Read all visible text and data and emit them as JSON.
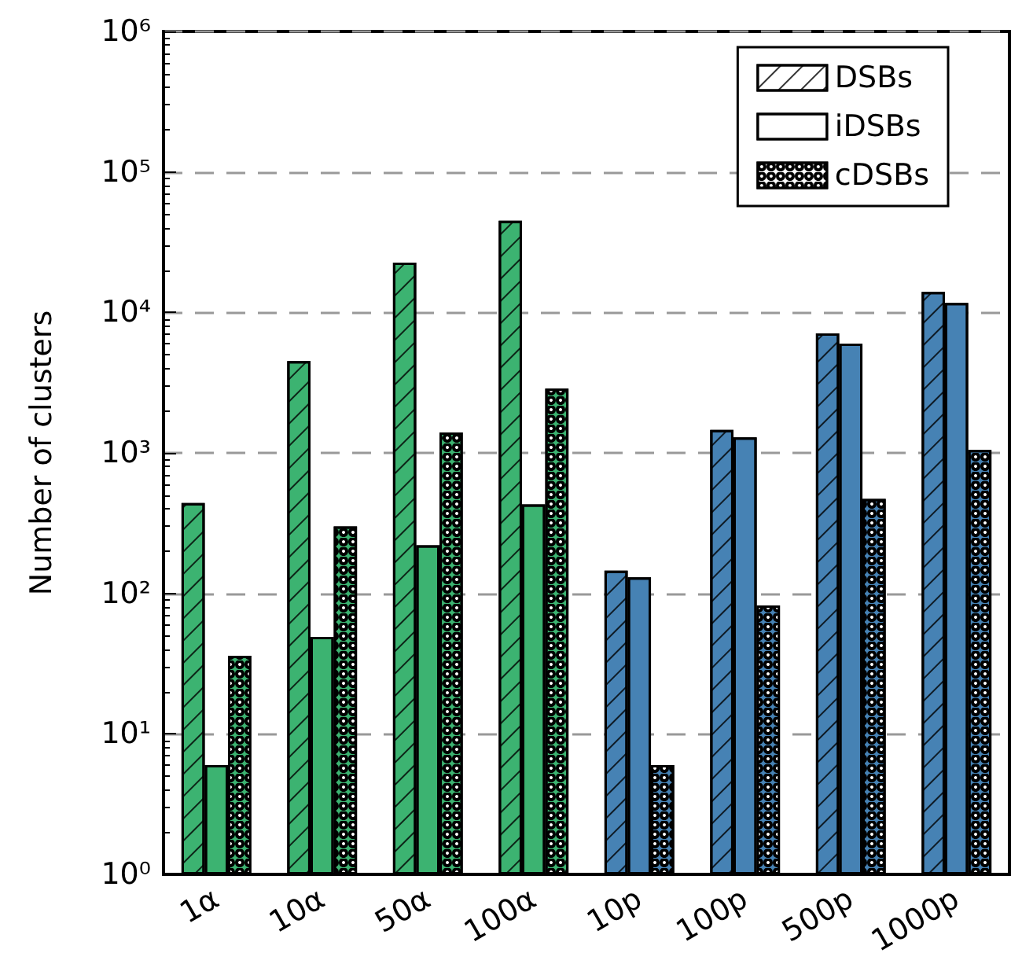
{
  "chart_data": {
    "type": "bar",
    "ylabel": "Number of clusters",
    "categories": [
      "1α",
      "10α",
      "50α",
      "100α",
      "10p",
      "100p",
      "500p",
      "1000p"
    ],
    "series": [
      {
        "name": "DSBs",
        "colors": [
          "#3cb371",
          "#3cb371",
          "#3cb371",
          "#3cb371",
          "#4682b4",
          "#4682b4",
          "#4682b4",
          "#4682b4"
        ],
        "values": [
          440,
          4500,
          22600,
          45000,
          145,
          1460,
          7100,
          14000
        ]
      },
      {
        "name": "iDSBs",
        "colors": [
          "#3cb371",
          "#3cb371",
          "#3cb371",
          "#3cb371",
          "#4682b4",
          "#4682b4",
          "#4682b4",
          "#4682b4"
        ],
        "values": [
          6,
          49,
          220,
          430,
          130,
          1290,
          6000,
          11700
        ]
      },
      {
        "name": "cDSBs",
        "colors": [
          "#3cb371",
          "#3cb371",
          "#3cb371",
          "#3cb371",
          "#4682b4",
          "#4682b4",
          "#4682b4",
          "#4682b4"
        ],
        "values": [
          36,
          300,
          1400,
          2870,
          6,
          82,
          470,
          1050
        ]
      }
    ],
    "log": true,
    "ylim": [
      1,
      1000000
    ],
    "yticks": [
      {
        "value": 1,
        "label": "10⁰"
      },
      {
        "value": 10,
        "label": "10¹"
      },
      {
        "value": 100,
        "label": "10²"
      },
      {
        "value": 1000,
        "label": "10³"
      },
      {
        "value": 10000,
        "label": "10⁴"
      },
      {
        "value": 100000,
        "label": "10⁵"
      },
      {
        "value": 1000000,
        "label": "10⁶"
      }
    ],
    "grid": "y",
    "legend": "top right"
  }
}
